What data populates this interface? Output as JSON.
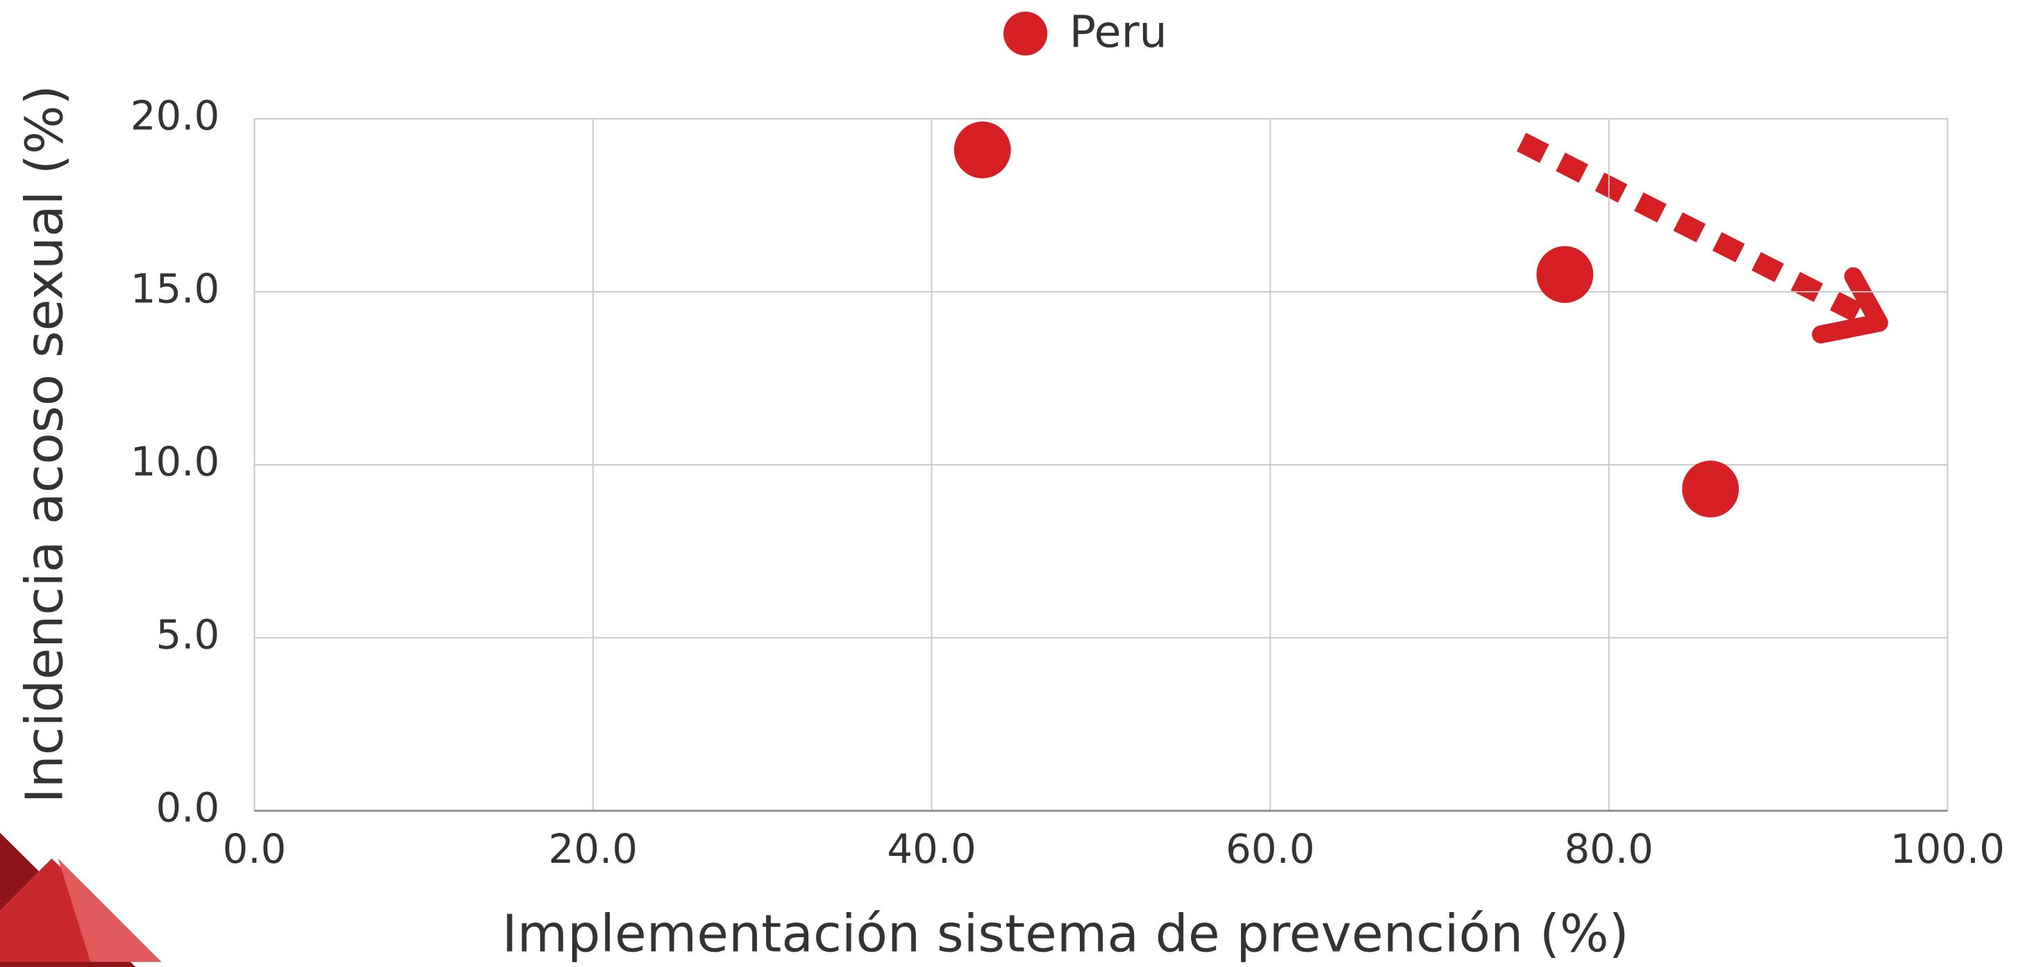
{
  "chart_data": {
    "type": "scatter",
    "x_label": "Implementación sistema de prevención (%)",
    "y_label": "Incidencia acoso sexual (%)",
    "series": [
      {
        "name": "Peru",
        "color": "#d62024",
        "x": [
          43.0,
          77.4,
          86.0
        ],
        "values": [
          19.1,
          15.5,
          9.3
        ]
      }
    ],
    "xlim": [
      0,
      100
    ],
    "xticks": [
      {
        "value": 0,
        "label": "0.0"
      },
      {
        "value": 20,
        "label": "20.0"
      },
      {
        "value": 40,
        "label": "40.0"
      },
      {
        "value": 60,
        "label": "60.0"
      },
      {
        "value": 80,
        "label": "80.0"
      },
      {
        "value": 100,
        "label": "100.0"
      }
    ],
    "ylim": [
      0,
      20
    ],
    "yticks": [
      {
        "value": 0,
        "label": "0.0"
      },
      {
        "value": 5,
        "label": "5.0"
      },
      {
        "value": 10,
        "label": "10.0"
      },
      {
        "value": 15,
        "label": "15.0"
      },
      {
        "value": 20,
        "label": "20.0"
      }
    ],
    "grid": true,
    "legend": "top"
  }
}
